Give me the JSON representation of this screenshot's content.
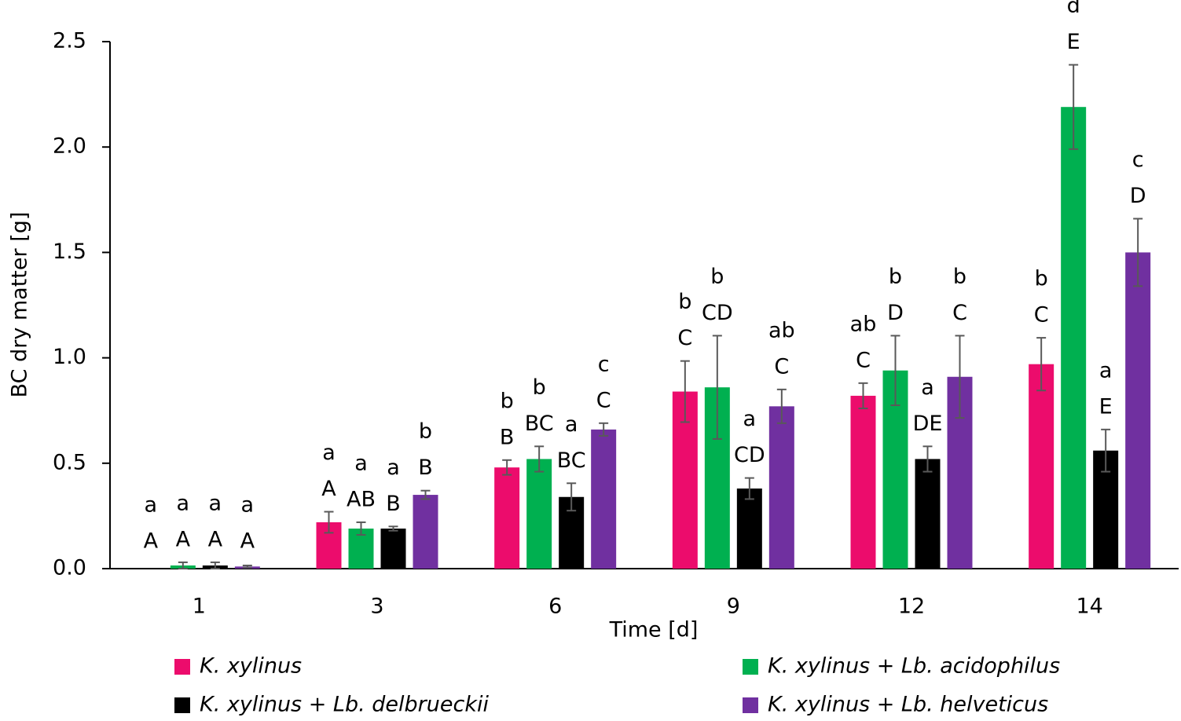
{
  "chart_data": {
    "type": "bar",
    "x_label": "Time [d]",
    "y_label": "BC dry matter [g]",
    "categories": [
      "1",
      "3",
      "6",
      "9",
      "12",
      "14"
    ],
    "ylim": [
      0,
      2.5
    ],
    "yticks": [
      {
        "value": 0,
        "label": "0.0"
      },
      {
        "value": 0.5,
        "label": "0.5"
      },
      {
        "value": 1,
        "label": "1.0"
      },
      {
        "value": 1.5,
        "label": "1.5"
      },
      {
        "value": 2,
        "label": "2.0"
      },
      {
        "value": 2.5,
        "label": "2.5"
      }
    ],
    "legend": "bottom",
    "series": [
      {
        "name": "K. xylinus",
        "color": "#ec0c6c",
        "values": [
          0,
          0.22,
          0.48,
          0.84,
          0.82,
          0.97
        ],
        "errors": [
          null,
          0.05,
          0.035,
          0.145,
          0.06,
          0.125
        ],
        "lowercase_labels": [
          "a",
          "a",
          "b",
          "b",
          "ab",
          "b"
        ],
        "uppercase_labels": [
          "A",
          "A",
          "B",
          "C",
          "C",
          "C"
        ]
      },
      {
        "name": "K. xylinus + Lb. acidophilus",
        "color": "#00b050",
        "values": [
          0.015,
          0.19,
          0.52,
          0.86,
          0.94,
          2.19
        ],
        "errors": [
          0.015,
          0.03,
          0.06,
          0.245,
          0.165,
          0.2
        ],
        "lowercase_labels": [
          "a",
          "a",
          "b",
          "b",
          "b",
          "d"
        ],
        "uppercase_labels": [
          "A",
          "AB",
          "BC",
          "CD",
          "D",
          "E"
        ]
      },
      {
        "name": "K. xylinus + Lb. delbrueckii",
        "color": "#000000",
        "values": [
          0.015,
          0.19,
          0.34,
          0.38,
          0.52,
          0.56
        ],
        "errors": [
          0.015,
          0.01,
          0.065,
          0.05,
          0.06,
          0.1
        ],
        "lowercase_labels": [
          "a",
          "a",
          "a",
          "a",
          "a",
          "a"
        ],
        "uppercase_labels": [
          "A",
          "B",
          "BC",
          "CD",
          "DE",
          "E"
        ]
      },
      {
        "name": "K. xylinus + Lb. helveticus",
        "color": "#7030a0",
        "values": [
          0.01,
          0.35,
          0.66,
          0.77,
          0.91,
          1.5
        ],
        "errors": [
          0.005,
          0.02,
          0.03,
          0.08,
          0.195,
          0.16
        ],
        "lowercase_labels": [
          "a",
          "b",
          "c",
          "ab",
          "b",
          "c"
        ],
        "uppercase_labels": [
          "A",
          "B",
          "C",
          "C",
          "C",
          "D"
        ]
      }
    ]
  }
}
